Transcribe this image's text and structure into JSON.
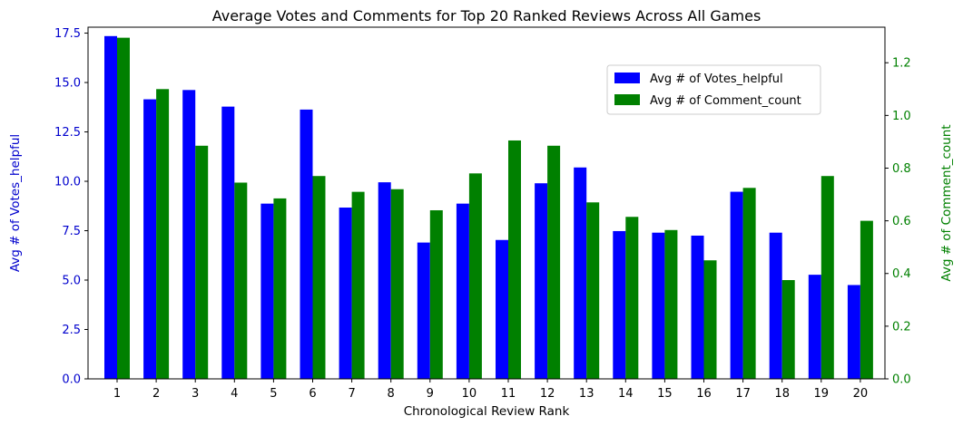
{
  "chart_data": {
    "type": "bar",
    "title": "Average Votes and Comments for Top 20 Ranked Reviews Across All Games",
    "xlabel": "Chronological Review Rank",
    "ylabel_left": "Avg # of Votes_helpful",
    "ylabel_right": "Avg # of Comment_count",
    "categories": [
      "1",
      "2",
      "3",
      "4",
      "5",
      "6",
      "7",
      "8",
      "9",
      "10",
      "11",
      "12",
      "13",
      "14",
      "15",
      "16",
      "17",
      "18",
      "19",
      "20"
    ],
    "series": [
      {
        "name": "Avg # of Votes_helpful",
        "axis": "left",
        "color": "#0000ff",
        "values": [
          17.35,
          14.15,
          14.62,
          13.78,
          8.87,
          13.63,
          8.67,
          9.95,
          6.9,
          8.87,
          7.03,
          9.9,
          10.7,
          7.48,
          7.4,
          7.25,
          9.47,
          7.4,
          5.27,
          4.75
        ]
      },
      {
        "name": "Avg # of Comment_count",
        "axis": "right",
        "color": "#008000",
        "values": [
          1.295,
          1.1,
          0.885,
          0.745,
          0.685,
          0.77,
          0.71,
          0.72,
          0.64,
          0.78,
          0.905,
          0.885,
          0.67,
          0.615,
          0.565,
          0.45,
          0.725,
          0.375,
          0.77,
          0.6
        ]
      }
    ],
    "ylim_left": [
      0,
      17.8
    ],
    "ylim_right": [
      0,
      1.335
    ],
    "yticks_left": [
      "0.0",
      "2.5",
      "5.0",
      "7.5",
      "10.0",
      "12.5",
      "15.0",
      "17.5"
    ],
    "yticks_right": [
      "0.0",
      "0.2",
      "0.4",
      "0.6",
      "0.8",
      "1.0",
      "1.2"
    ],
    "left_axis_color": "#0000cd",
    "right_axis_color": "#008000",
    "legend_position": "upper-right-inset",
    "grid": false
  }
}
